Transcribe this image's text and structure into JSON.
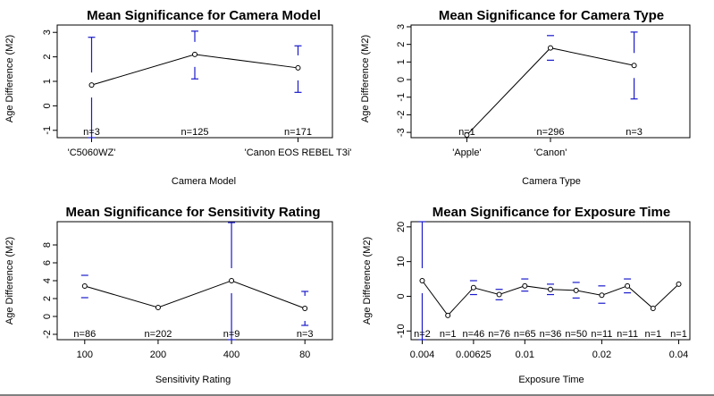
{
  "chart_data": [
    {
      "type": "line",
      "title": "Mean Significance for Camera Model",
      "xlabel": "Camera Model",
      "ylabel": "Age Difference (M2)",
      "ylim": [
        -1.3,
        3.3
      ],
      "yticks": [
        -1,
        0,
        1,
        2,
        3
      ],
      "categories": [
        "'C5060WZ'",
        "",
        "'Canon EOS REBEL T3i'"
      ],
      "tick_labels": [
        "'C5060WZ'",
        "'Canon EOS REBEL T3i'"
      ],
      "tick_indices": [
        0,
        2
      ],
      "values": [
        0.85,
        2.1,
        1.55
      ],
      "n_labels": [
        "n=3",
        "n=125",
        "n=171"
      ],
      "ci": [
        [
          -1.3,
          2.8
        ],
        [
          1.1,
          3.05
        ],
        [
          0.55,
          2.45
        ]
      ]
    },
    {
      "type": "line",
      "title": "Mean Significance for Camera Type",
      "xlabel": "Camera Type",
      "ylabel": "Age Difference (M2)",
      "ylim": [
        -3.3,
        3.1
      ],
      "yticks": [
        -3,
        -2,
        -1,
        0,
        1,
        2,
        3
      ],
      "categories": [
        "'Apple'",
        "'Canon'",
        ""
      ],
      "tick_labels": [
        "'Apple'",
        "'Canon'"
      ],
      "tick_indices": [
        0,
        1
      ],
      "values": [
        -3.15,
        1.8,
        0.8
      ],
      "n_labels": [
        "n=1",
        "n=296",
        "n=3"
      ],
      "ci": [
        null,
        [
          1.1,
          2.5
        ],
        [
          -1.1,
          2.7
        ]
      ]
    },
    {
      "type": "line",
      "title": "Mean Significance for Sensitivity Rating",
      "xlabel": "Sensitivity Rating",
      "ylabel": "Age Difference (M2)",
      "ylim": [
        -2.6,
        10.6
      ],
      "yticks": [
        -2,
        0,
        2,
        4,
        6,
        8
      ],
      "categories": [
        "100",
        "200",
        "400",
        "80"
      ],
      "tick_labels": [
        "100",
        "200",
        "400",
        "80"
      ],
      "tick_indices": [
        0,
        1,
        2,
        3
      ],
      "values": [
        3.4,
        1.0,
        4.0,
        0.9
      ],
      "n_labels": [
        "n=86",
        "n=202",
        "n=9",
        "n=3"
      ],
      "ci": [
        [
          2.1,
          4.6
        ],
        null,
        [
          -2.6,
          10.5
        ],
        [
          -1.0,
          2.8
        ]
      ]
    },
    {
      "type": "line",
      "title": "Mean Significance for Exposure Time",
      "xlabel": "Exposure Time",
      "ylabel": "Age Difference (M2)",
      "ylim": [
        -12.5,
        21.5
      ],
      "yticks": [
        -10,
        0,
        10,
        20
      ],
      "categories": [
        "0.004",
        "",
        "0.00625",
        "",
        "0.01",
        "",
        "",
        "0.02",
        "",
        "",
        "0.04"
      ],
      "tick_labels": [
        "0.004",
        "0.00625",
        "0.01",
        "0.02",
        "0.04"
      ],
      "tick_indices": [
        0,
        2,
        4,
        7,
        10
      ],
      "values": [
        4.5,
        -5.5,
        2.5,
        0.5,
        3.0,
        2.0,
        1.7,
        0.3,
        3.0,
        -3.5,
        3.5
      ],
      "n_labels": [
        "n=2",
        "n=1",
        "n=46",
        "n=76",
        "n=65",
        "n=36",
        "n=50",
        "n=11",
        "n=11",
        "n=1",
        "n=1"
      ],
      "ci": [
        [
          -12.5,
          21.5
        ],
        null,
        [
          0.5,
          4.5
        ],
        [
          -1.0,
          2.0
        ],
        [
          1.5,
          5.0
        ],
        [
          0.5,
          3.5
        ],
        [
          -0.5,
          4.0
        ],
        [
          -2.0,
          3.0
        ],
        [
          1.0,
          5.0
        ],
        null,
        null
      ]
    }
  ]
}
